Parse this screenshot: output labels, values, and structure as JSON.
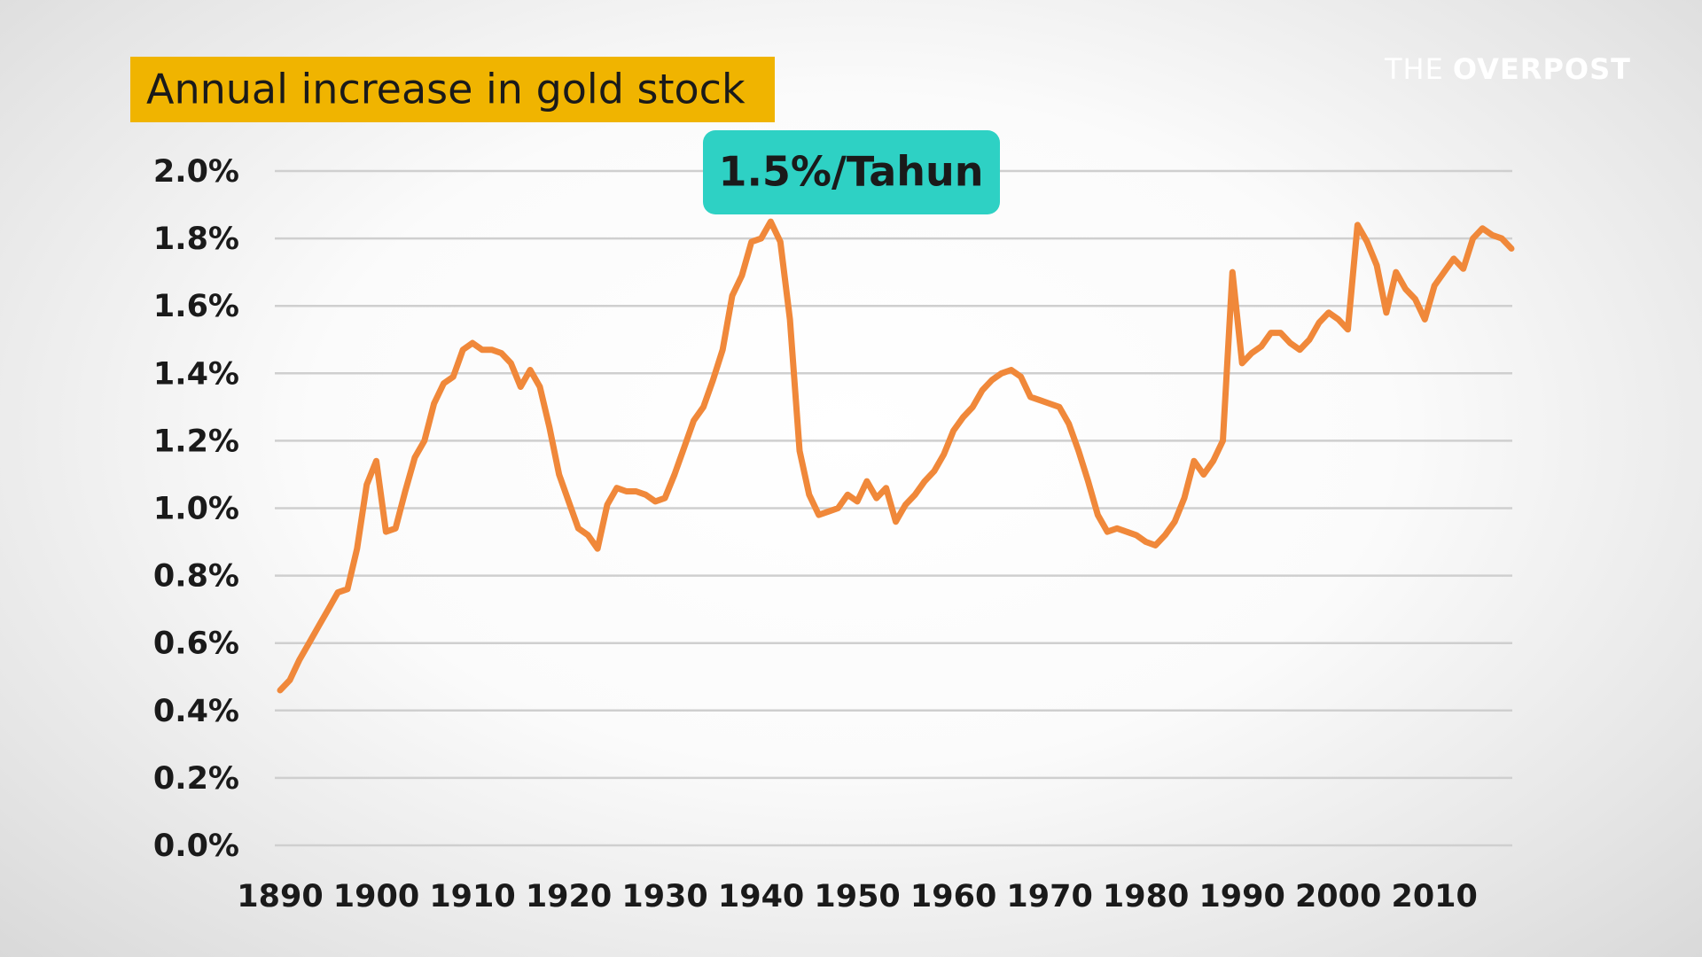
{
  "watermark": {
    "prefix": "THE",
    "name": "OVERPOST"
  },
  "chart_data": {
    "type": "line",
    "title": "Annual increase in gold stock",
    "annotation": "1.5%/Tahun",
    "color": "#f0883a",
    "grid": true,
    "x": [
      1890,
      1891,
      1892,
      1893,
      1894,
      1895,
      1896,
      1897,
      1898,
      1899,
      1900,
      1901,
      1902,
      1903,
      1904,
      1905,
      1906,
      1907,
      1908,
      1909,
      1910,
      1911,
      1912,
      1913,
      1914,
      1915,
      1916,
      1917,
      1918,
      1919,
      1920,
      1921,
      1922,
      1923,
      1924,
      1925,
      1926,
      1927,
      1928,
      1929,
      1930,
      1931,
      1932,
      1933,
      1934,
      1935,
      1936,
      1937,
      1938,
      1939,
      1940,
      1941,
      1942,
      1943,
      1944,
      1945,
      1946,
      1947,
      1948,
      1949,
      1950,
      1951,
      1952,
      1953,
      1954,
      1955,
      1956,
      1957,
      1958,
      1959,
      1960,
      1961,
      1962,
      1963,
      1964,
      1965,
      1966,
      1967,
      1968,
      1969,
      1970,
      1971,
      1972,
      1973,
      1974,
      1975,
      1976,
      1977,
      1978,
      1979,
      1980,
      1981,
      1982,
      1983,
      1984,
      1985,
      1986,
      1987,
      1988,
      1989,
      1990,
      1991,
      1992,
      1993,
      1994,
      1995,
      1996,
      1997,
      1998,
      1999,
      2000,
      2001,
      2002,
      2003,
      2004,
      2005,
      2006,
      2007,
      2008,
      2009,
      2010,
      2011,
      2012,
      2013,
      2014,
      2015,
      2016,
      2017,
      2018
    ],
    "values": [
      0.46,
      0.49,
      0.55,
      0.6,
      0.65,
      0.7,
      0.75,
      0.76,
      0.88,
      1.07,
      1.14,
      0.93,
      0.94,
      1.05,
      1.15,
      1.2,
      1.31,
      1.37,
      1.39,
      1.47,
      1.49,
      1.47,
      1.47,
      1.46,
      1.43,
      1.36,
      1.41,
      1.36,
      1.24,
      1.1,
      1.02,
      0.94,
      0.92,
      0.88,
      1.01,
      1.06,
      1.05,
      1.05,
      1.04,
      1.02,
      1.03,
      1.1,
      1.18,
      1.26,
      1.3,
      1.38,
      1.47,
      1.63,
      1.69,
      1.79,
      1.8,
      1.85,
      1.79,
      1.56,
      1.17,
      1.04,
      0.98,
      0.99,
      1.0,
      1.04,
      1.02,
      1.08,
      1.03,
      1.06,
      0.96,
      1.01,
      1.04,
      1.08,
      1.11,
      1.16,
      1.23,
      1.27,
      1.3,
      1.35,
      1.38,
      1.4,
      1.41,
      1.39,
      1.33,
      1.32,
      1.31,
      1.3,
      1.25,
      1.17,
      1.08,
      0.98,
      0.93,
      0.94,
      0.93,
      0.92,
      0.9,
      0.89,
      0.92,
      0.96,
      1.03,
      1.14,
      1.1,
      1.14,
      1.2,
      1.7,
      1.43,
      1.46,
      1.48,
      1.52,
      1.52,
      1.49,
      1.47,
      1.5,
      1.55,
      1.58,
      1.56,
      1.53,
      1.84,
      1.79,
      1.72,
      1.58,
      1.7,
      1.65,
      1.62,
      1.56,
      1.66,
      1.7,
      1.74,
      1.71,
      1.8,
      1.83,
      1.81,
      1.8,
      1.77
    ],
    "xlim": [
      1890,
      2018
    ],
    "xticks": [
      1890,
      1900,
      1910,
      1920,
      1930,
      1940,
      1950,
      1960,
      1970,
      1980,
      1990,
      2000,
      2010
    ],
    "ylim": [
      0,
      2
    ],
    "yticks": [
      {
        "value": 0,
        "label": "0.0%"
      },
      {
        "value": 0.2,
        "label": "0.2%"
      },
      {
        "value": 0.4,
        "label": "0.4%"
      },
      {
        "value": 0.6,
        "label": "0.6%"
      },
      {
        "value": 0.8,
        "label": "0.8%"
      },
      {
        "value": 1.0,
        "label": "1.0%"
      },
      {
        "value": 1.2,
        "label": "1.2%"
      },
      {
        "value": 1.4,
        "label": "1.4%"
      },
      {
        "value": 1.6,
        "label": "1.6%"
      },
      {
        "value": 1.8,
        "label": "1.8%"
      },
      {
        "value": 2.0,
        "label": "2.0%"
      }
    ]
  }
}
